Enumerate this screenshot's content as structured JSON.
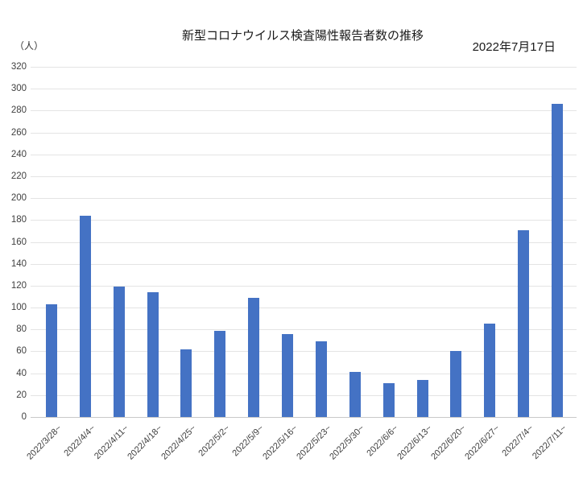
{
  "header": {
    "title": "新型コロナウイルス検査陽性報告者数の推移",
    "date": "2022年7月17日",
    "unit_label": "（人）"
  },
  "chart_data": {
    "type": "bar",
    "title": "新型コロナウイルス検査陽性報告者数の推移",
    "annotation_date": "2022年7月17日",
    "ylabel": "（人）",
    "xlabel": "",
    "categories": [
      "2022/3/28~",
      "2022/4/4~",
      "2022/4/11~",
      "2022/4/18~",
      "2022/4/25~",
      "2022/5/2~",
      "2022/5/9~",
      "2022/5/16~",
      "2022/5/23~",
      "2022/5/30~",
      "2022/6/6~",
      "2022/6/13~",
      "2022/6/20~",
      "2022/6/27~",
      "2022/7/4~",
      "2022/7/11~"
    ],
    "values": [
      103,
      184,
      119,
      114,
      62,
      79,
      109,
      76,
      69,
      41,
      31,
      34,
      60,
      85,
      171,
      286
    ],
    "ylim": [
      0,
      320
    ],
    "ytick_step": 20,
    "grid": true,
    "legend": false,
    "bar_color": "#4472C4",
    "gridline_color": "#E4E4E4",
    "axis_line_color": "#C9C9C9",
    "tick_label_color": "#404040"
  }
}
